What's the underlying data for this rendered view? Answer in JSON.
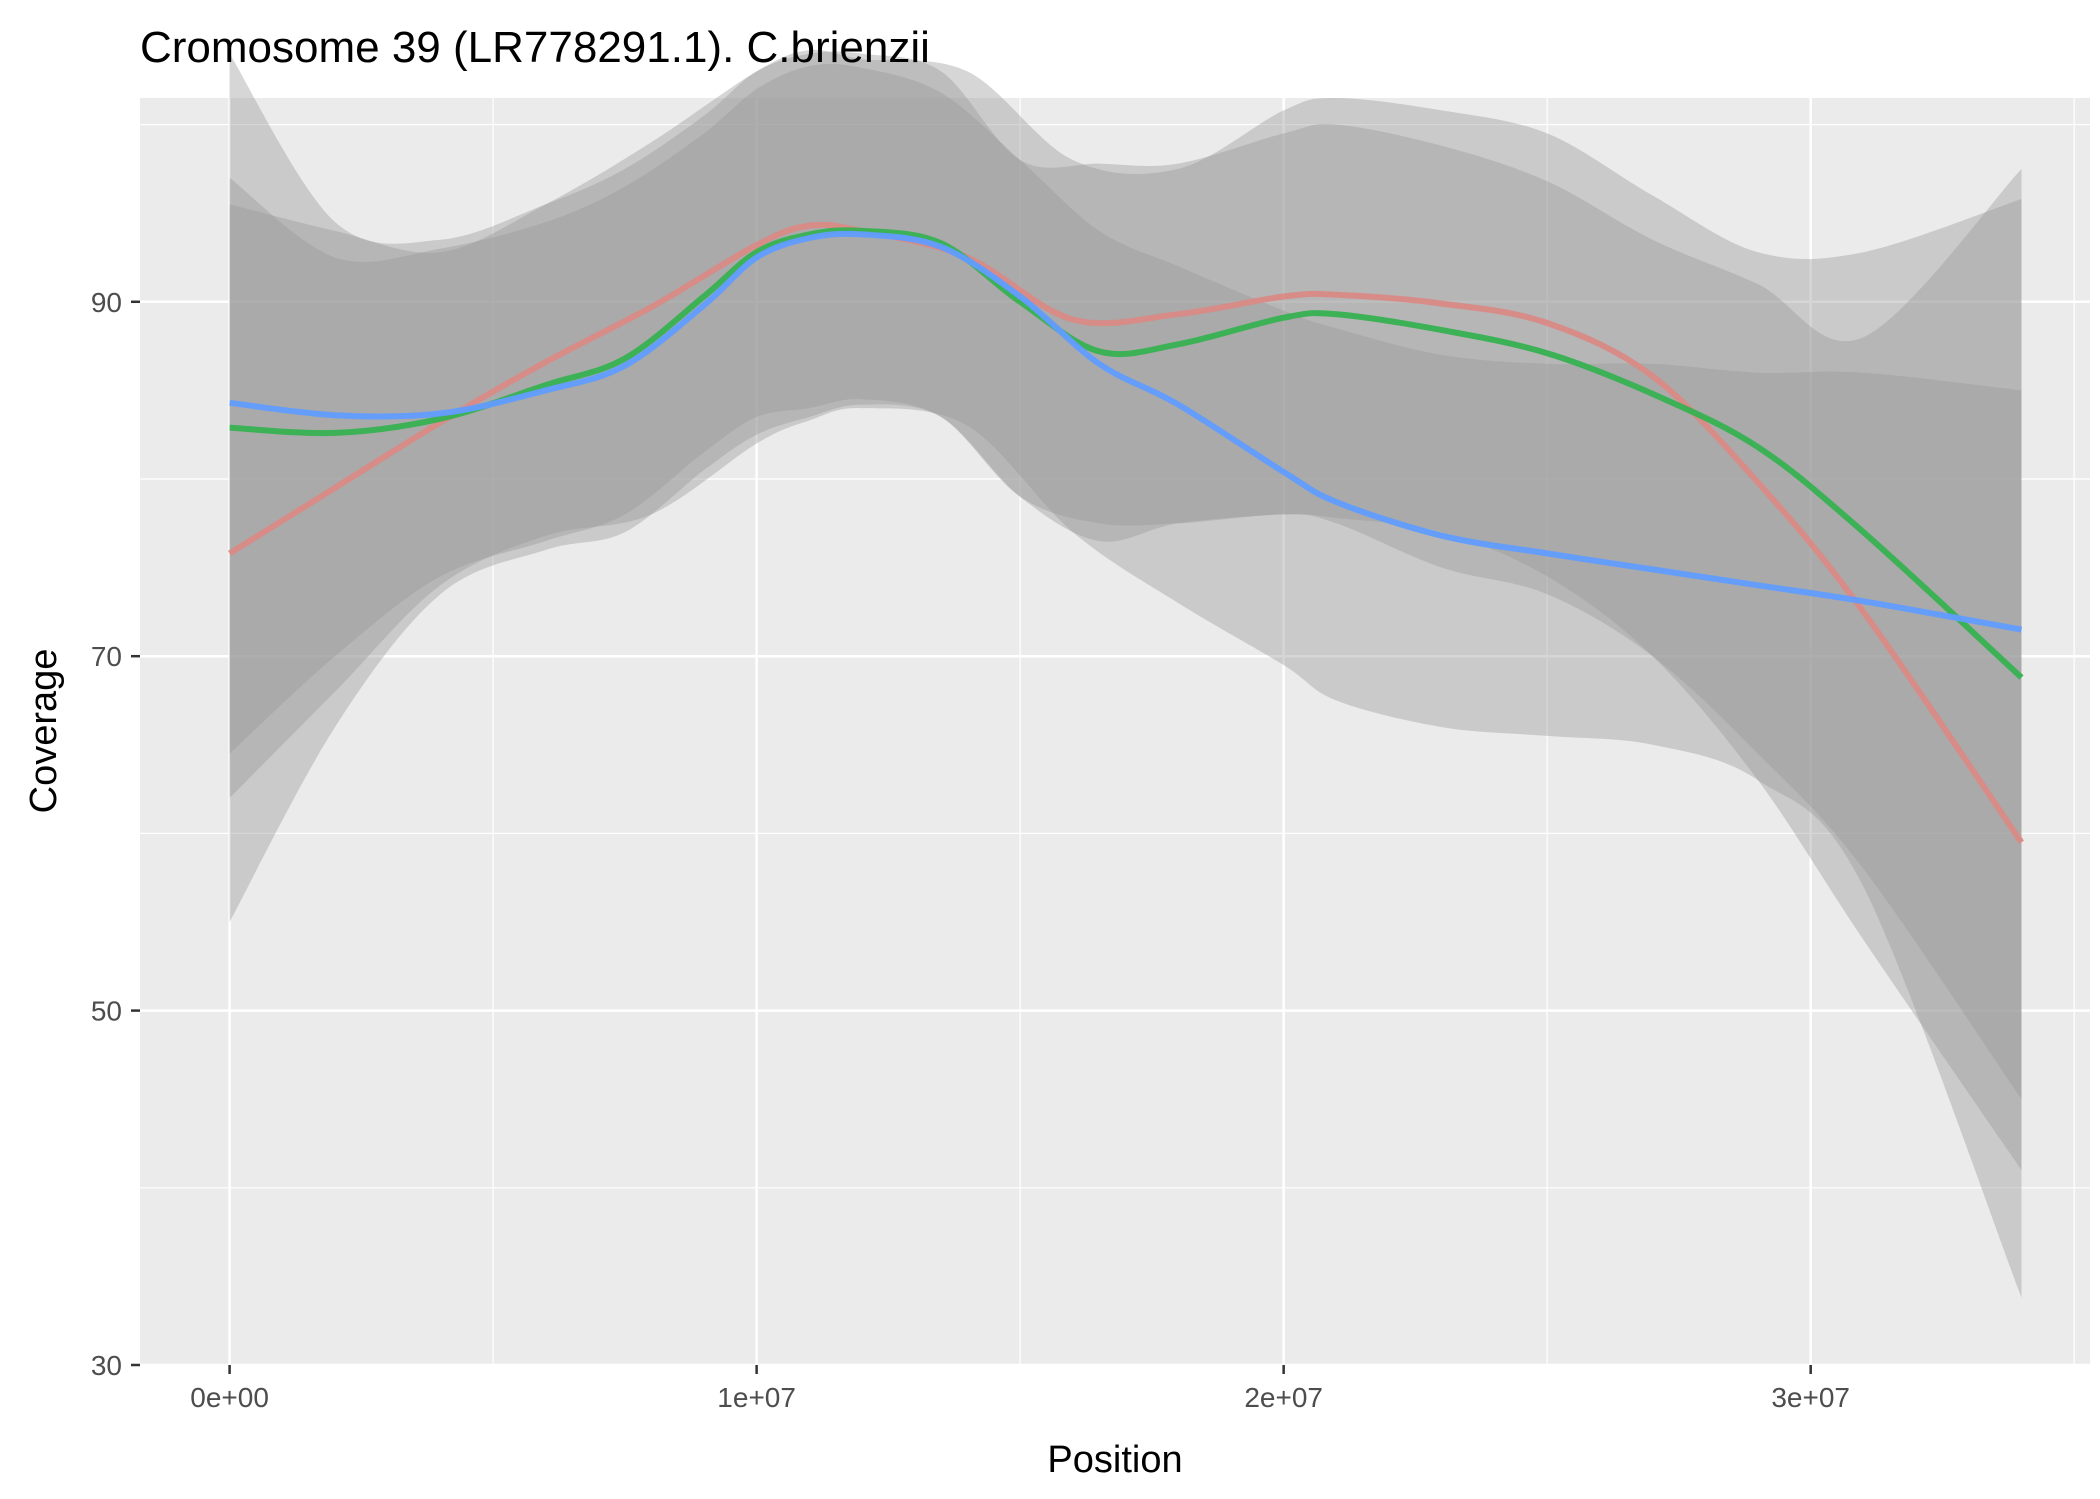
{
  "chart_data": {
    "type": "line",
    "title": "Cromosome 39 (LR778291.1). C.brienzii",
    "xlabel": "Position",
    "ylabel": "Coverage",
    "xlim": [
      -1700000,
      35300000
    ],
    "ylim": [
      30,
      101.5
    ],
    "x_ticks": [
      {
        "value": 0,
        "label": "0e+00"
      },
      {
        "value": 10000000,
        "label": "1e+07"
      },
      {
        "value": 20000000,
        "label": "2e+07"
      },
      {
        "value": 30000000,
        "label": "3e+07"
      }
    ],
    "x_minor_ticks": [
      5000000,
      15000000,
      25000000,
      35000000
    ],
    "y_ticks": [
      {
        "value": 30,
        "label": "30"
      },
      {
        "value": 50,
        "label": "50"
      },
      {
        "value": 70,
        "label": "70"
      },
      {
        "value": 90,
        "label": "90"
      }
    ],
    "y_minor_ticks": [
      40,
      60,
      80,
      100
    ],
    "grid": true,
    "legend": "none",
    "colors": {
      "panel_background": "#ebebeb",
      "grid": "#ffffff",
      "ribbon": "#999999",
      "series_1": "#d98a86",
      "series_2": "#36b150",
      "series_3": "#619cff"
    },
    "series": [
      {
        "color": "#d98a86",
        "x": [
          0,
          2000000,
          4000000,
          6000000,
          8000000,
          10000000,
          11000000,
          12000000,
          14000000,
          16000000,
          18000000,
          20000000,
          21000000,
          23000000,
          25000000,
          27000000,
          29000000,
          31000000,
          34000000
        ],
        "y": [
          75.8,
          79.5,
          83.2,
          86.6,
          89.7,
          93.2,
          94.3,
          94.0,
          92.5,
          89.0,
          89.3,
          90.3,
          90.4,
          89.9,
          88.8,
          85.8,
          79.8,
          72.5,
          59.5
        ],
        "ci_lower": [
          62.0,
          68.0,
          74.0,
          76.8,
          78.0,
          82.0,
          83.3,
          84.0,
          83.0,
          77.0,
          73.0,
          69.5,
          67.5,
          66.0,
          65.5,
          65.0,
          63.0,
          57.0,
          33.8
        ],
        "ci_upper": [
          95.5,
          94.0,
          92.8,
          95.5,
          99.0,
          103.0,
          104.2,
          103.7,
          103.0,
          98.0,
          97.5,
          100.8,
          101.5,
          100.8,
          99.5,
          96.0,
          92.8,
          92.8,
          95.8
        ]
      },
      {
        "color": "#36b150",
        "x": [
          0,
          2000000,
          4000000,
          6000000,
          7500000,
          9000000,
          10000000,
          11000000,
          12000000,
          13500000,
          15000000,
          16500000,
          18000000,
          20000000,
          21000000,
          23000000,
          25000000,
          27000000,
          29000000,
          31000000,
          34000000
        ],
        "y": [
          82.9,
          82.6,
          83.4,
          85.3,
          86.8,
          90.3,
          92.8,
          93.8,
          94.0,
          93.3,
          90.0,
          87.2,
          87.6,
          89.1,
          89.3,
          88.4,
          87.1,
          84.8,
          81.8,
          77.0,
          68.8
        ],
        "ci_lower": [
          55.0,
          66.0,
          73.5,
          76.0,
          77.0,
          80.5,
          82.5,
          83.5,
          84.2,
          83.5,
          79.0,
          76.5,
          77.5,
          78.0,
          77.8,
          77.0,
          74.5,
          70.0,
          63.0,
          54.0,
          41.0
        ],
        "ci_upper": [
          104.0,
          94.5,
          93.5,
          95.5,
          97.5,
          100.5,
          103.0,
          104.0,
          104.0,
          103.0,
          98.0,
          97.8,
          97.8,
          99.5,
          100.0,
          98.8,
          96.8,
          93.5,
          91.0,
          88.0,
          97.5
        ]
      },
      {
        "color": "#619cff",
        "x": [
          0,
          2000000,
          4000000,
          6000000,
          7500000,
          9000000,
          10000000,
          11000000,
          12000000,
          13500000,
          15000000,
          16500000,
          18000000,
          20000000,
          21000000,
          23000000,
          25000000,
          27000000,
          29000000,
          31000000,
          34000000
        ],
        "y": [
          84.3,
          83.6,
          83.7,
          85.0,
          86.4,
          89.8,
          92.5,
          93.6,
          93.8,
          93.1,
          90.3,
          86.5,
          84.2,
          80.4,
          78.7,
          76.8,
          75.8,
          74.9,
          74.0,
          73.1,
          71.5
        ],
        "ci_lower": [
          64.5,
          70.0,
          74.5,
          76.5,
          78.0,
          81.5,
          83.5,
          84.0,
          84.5,
          83.5,
          79.0,
          77.5,
          77.5,
          78.0,
          77.5,
          75.0,
          73.5,
          70.0,
          64.5,
          58.0,
          45.0
        ],
        "ci_upper": [
          97.0,
          92.5,
          93.0,
          94.5,
          96.5,
          99.5,
          102.0,
          103.3,
          103.2,
          101.8,
          98.0,
          94.0,
          92.0,
          89.5,
          88.5,
          87.0,
          86.5,
          86.5,
          86.0,
          86.0,
          85.0
        ]
      }
    ]
  }
}
